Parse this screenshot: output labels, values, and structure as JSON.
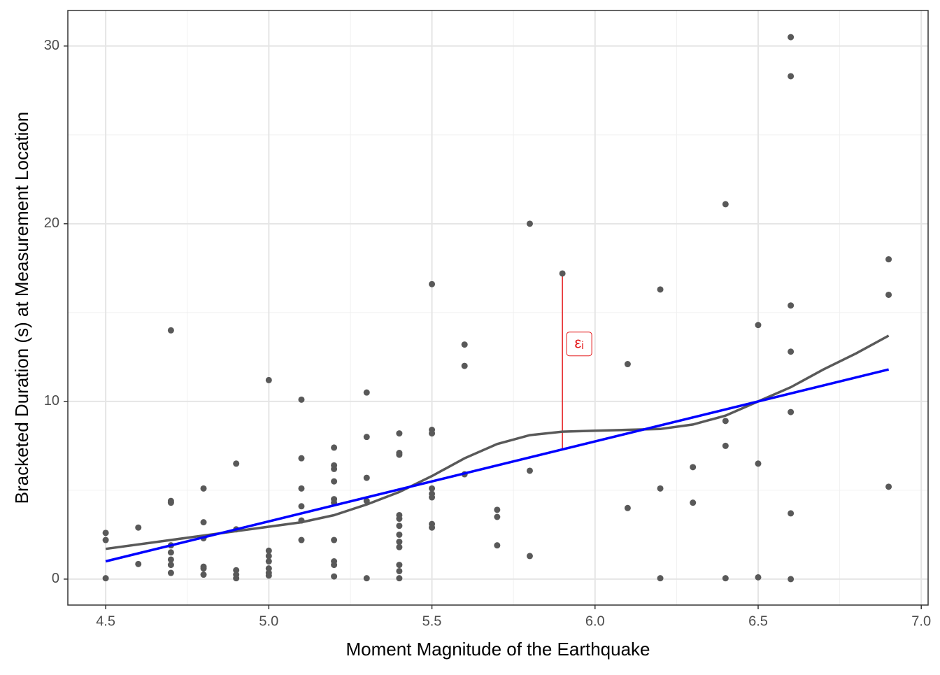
{
  "chart_data": {
    "type": "scatter",
    "x_label": "Moment Magnitude of the Earthquake",
    "y_label": "Bracketed Duration (s) at Measurement Location",
    "xlim": [
      4.384,
      7.021
    ],
    "ylim": [
      -1.46,
      32.0
    ],
    "xticks": [
      4.5,
      {
        "value": 5,
        "label": "5.0"
      },
      5.5,
      {
        "value": 6,
        "label": "6.0"
      },
      6.5,
      {
        "value": 7,
        "label": "7.0"
      }
    ],
    "yticks": [
      0,
      10,
      20,
      30
    ],
    "x_minor_grid": [
      4.75,
      5.25,
      5.75,
      6.25,
      6.75
    ],
    "y_minor_grid": [
      5,
      15,
      25
    ],
    "grid": true,
    "point_color": "#595959",
    "x": [
      4.5,
      4.5,
      4.5,
      4.6,
      4.6,
      4.7,
      4.7,
      4.7,
      4.7,
      4.7,
      4.7,
      4.7,
      4.7,
      4.8,
      4.8,
      4.8,
      4.8,
      4.8,
      4.8,
      4.9,
      4.9,
      4.9,
      4.9,
      4.9,
      5.0,
      5.0,
      5.0,
      5.0,
      5.0,
      5.0,
      5.0,
      5.1,
      5.1,
      5.1,
      5.1,
      5.1,
      5.1,
      5.2,
      5.2,
      5.2,
      5.2,
      5.2,
      5.2,
      5.2,
      5.2,
      5.2,
      5.2,
      5.3,
      5.3,
      5.3,
      5.3,
      5.3,
      5.4,
      5.4,
      5.4,
      5.4,
      5.4,
      5.4,
      5.4,
      5.4,
      5.4,
      5.4,
      5.4,
      5.4,
      5.5,
      5.5,
      5.5,
      5.5,
      5.5,
      5.5,
      5.5,
      5.5,
      5.6,
      5.6,
      5.6,
      5.7,
      5.7,
      5.7,
      5.8,
      5.8,
      5.8,
      5.9,
      6.1,
      6.1,
      6.2,
      6.2,
      6.2,
      6.3,
      6.3,
      6.4,
      6.4,
      6.4,
      6.4,
      6.5,
      6.5,
      6.5,
      6.6,
      6.6,
      6.6,
      6.6,
      6.6,
      6.6,
      6.6,
      6.9,
      6.9,
      6.9
    ],
    "values": [
      2.6,
      2.2,
      0.05,
      2.9,
      0.85,
      14.0,
      4.4,
      4.3,
      1.9,
      1.5,
      1.1,
      0.8,
      0.35,
      5.1,
      3.2,
      2.3,
      0.7,
      0.6,
      0.25,
      6.5,
      2.8,
      0.5,
      0.25,
      0.05,
      11.2,
      1.6,
      1.3,
      1.0,
      0.6,
      0.35,
      0.2,
      10.1,
      6.8,
      5.1,
      4.1,
      3.3,
      2.2,
      7.4,
      6.4,
      6.2,
      5.5,
      4.5,
      4.3,
      2.2,
      1.0,
      0.8,
      0.15,
      10.5,
      8.0,
      5.7,
      4.4,
      0.05,
      8.2,
      7.1,
      7.0,
      3.6,
      3.4,
      3.0,
      2.5,
      2.1,
      1.8,
      0.8,
      0.45,
      0.05,
      16.6,
      8.4,
      8.2,
      5.1,
      4.8,
      4.6,
      3.1,
      2.9,
      13.2,
      12.0,
      5.9,
      3.9,
      3.5,
      1.9,
      20.0,
      6.1,
      1.3,
      17.2,
      12.1,
      4.0,
      16.3,
      5.1,
      0.05,
      6.3,
      4.3,
      21.1,
      8.9,
      7.5,
      0.05,
      14.3,
      6.5,
      0.1,
      30.5,
      28.3,
      15.4,
      12.8,
      9.4,
      3.7,
      0.0,
      18.0,
      16.0,
      5.2
    ],
    "smooth": {
      "color": "#595959",
      "x": [
        4.5,
        4.7,
        4.9,
        5.0,
        5.1,
        5.2,
        5.3,
        5.4,
        5.5,
        5.6,
        5.7,
        5.8,
        5.9,
        6.0,
        6.1,
        6.2,
        6.3,
        6.4,
        6.5,
        6.6,
        6.7,
        6.8,
        6.9
      ],
      "values": [
        1.7,
        2.2,
        2.7,
        2.95,
        3.2,
        3.6,
        4.2,
        4.9,
        5.8,
        6.8,
        7.6,
        8.1,
        8.3,
        8.35,
        8.4,
        8.45,
        8.7,
        9.2,
        10.0,
        10.8,
        11.8,
        12.7,
        13.7
      ]
    },
    "fit": {
      "color": "#0000ff",
      "x": [
        4.5,
        6.9
      ],
      "values": [
        1.0,
        11.8
      ]
    },
    "residual": {
      "color": "#e41a1c",
      "x": 5.9,
      "from": 17.2,
      "to": 7.3,
      "label": "εᵢ"
    }
  }
}
